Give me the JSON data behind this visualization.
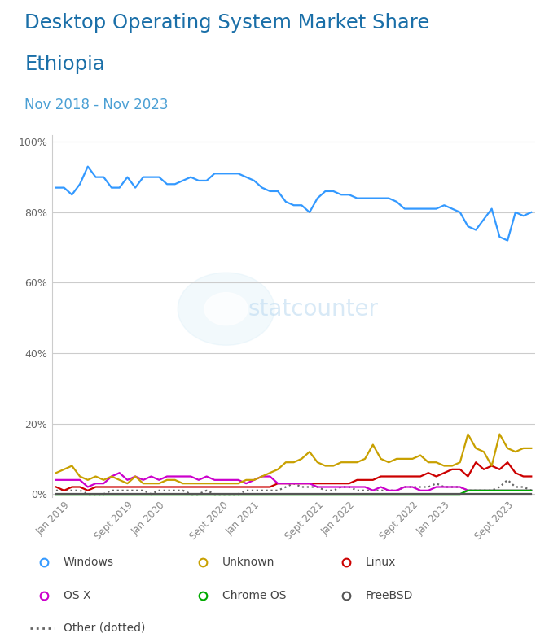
{
  "title_line1": "Desktop Operating System Market Share",
  "title_line2": "Ethiopia",
  "subtitle": "Nov 2018 - Nov 2023",
  "title_color": "#1a6fa8",
  "subtitle_color": "#4a9fd4",
  "background_color": "#ffffff",
  "plot_bg_color": "#ffffff",
  "grid_color": "#cccccc",
  "watermark_text": "statcounter",
  "series": {
    "Windows": {
      "color": "#3399ff",
      "zorder": 5,
      "values": [
        87,
        87,
        85,
        88,
        93,
        90,
        90,
        87,
        87,
        90,
        87,
        90,
        90,
        90,
        88,
        88,
        89,
        90,
        89,
        89,
        91,
        91,
        91,
        91,
        90,
        89,
        87,
        86,
        86,
        83,
        82,
        82,
        80,
        84,
        86,
        86,
        85,
        85,
        84,
        84,
        84,
        84,
        84,
        83,
        81,
        81,
        81,
        81,
        81,
        82,
        81,
        80,
        76,
        75,
        78,
        81,
        73,
        72,
        80,
        79,
        80
      ]
    },
    "Unknown": {
      "color": "#c8a000",
      "zorder": 4,
      "values": [
        6,
        7,
        8,
        5,
        4,
        5,
        4,
        5,
        4,
        3,
        5,
        3,
        3,
        3,
        4,
        4,
        3,
        3,
        3,
        3,
        3,
        3,
        3,
        3,
        4,
        4,
        5,
        6,
        7,
        9,
        9,
        10,
        12,
        9,
        8,
        8,
        9,
        9,
        9,
        10,
        14,
        10,
        9,
        10,
        10,
        10,
        11,
        9,
        9,
        8,
        8,
        9,
        17,
        13,
        12,
        8,
        17,
        13,
        12,
        13,
        13
      ]
    },
    "Linux": {
      "color": "#cc0000",
      "zorder": 3,
      "values": [
        2,
        1,
        2,
        2,
        1,
        2,
        2,
        2,
        2,
        2,
        2,
        2,
        2,
        2,
        2,
        2,
        2,
        2,
        2,
        2,
        2,
        2,
        2,
        2,
        2,
        2,
        2,
        2,
        3,
        3,
        3,
        3,
        3,
        3,
        3,
        3,
        3,
        3,
        4,
        4,
        4,
        5,
        5,
        5,
        5,
        5,
        5,
        6,
        5,
        6,
        7,
        7,
        5,
        9,
        7,
        8,
        7,
        9,
        6,
        5,
        5
      ]
    },
    "OS X": {
      "color": "#cc00cc",
      "zorder": 3,
      "values": [
        4,
        4,
        4,
        4,
        2,
        3,
        3,
        5,
        6,
        4,
        5,
        4,
        5,
        4,
        5,
        5,
        5,
        5,
        4,
        5,
        4,
        4,
        4,
        4,
        3,
        4,
        5,
        5,
        3,
        3,
        3,
        3,
        3,
        2,
        2,
        2,
        2,
        2,
        2,
        2,
        1,
        2,
        1,
        1,
        2,
        2,
        1,
        1,
        2,
        2,
        2,
        2,
        1,
        1,
        1,
        1,
        1,
        1,
        1,
        1,
        1
      ]
    },
    "Chrome OS": {
      "color": "#00aa00",
      "zorder": 3,
      "values": [
        0,
        0,
        0,
        0,
        0,
        0,
        0,
        0,
        0,
        0,
        0,
        0,
        0,
        0,
        0,
        0,
        0,
        0,
        0,
        0,
        0,
        0,
        0,
        0,
        0,
        0,
        0,
        0,
        0,
        0,
        0,
        0,
        0,
        0,
        0,
        0,
        0,
        0,
        0,
        0,
        0,
        0,
        0,
        0,
        0,
        0,
        0,
        0,
        0,
        0,
        0,
        0,
        1,
        1,
        1,
        1,
        1,
        1,
        1,
        1,
        1
      ]
    },
    "FreeBSD": {
      "color": "#555555",
      "zorder": 3,
      "values": [
        0,
        0,
        0,
        0,
        0,
        0,
        0,
        0,
        0,
        0,
        0,
        0,
        0,
        0,
        0,
        0,
        0,
        0,
        0,
        0,
        0,
        0,
        0,
        0,
        0,
        0,
        0,
        0,
        0,
        0,
        0,
        0,
        0,
        0,
        0,
        0,
        0,
        0,
        0,
        0,
        0,
        0,
        0,
        0,
        0,
        0,
        0,
        0,
        0,
        0,
        0,
        0,
        0,
        0,
        0,
        0,
        0,
        0,
        0,
        0,
        0
      ]
    },
    "Other": {
      "color": "#666666",
      "linestyle": "dotted",
      "zorder": 2,
      "values": [
        1,
        1,
        1,
        1,
        0,
        0,
        0,
        1,
        1,
        1,
        1,
        1,
        0,
        1,
        1,
        1,
        1,
        0,
        0,
        1,
        0,
        0,
        0,
        0,
        1,
        1,
        1,
        1,
        1,
        2,
        3,
        2,
        2,
        2,
        1,
        1,
        2,
        2,
        1,
        1,
        1,
        1,
        1,
        1,
        2,
        2,
        2,
        2,
        3,
        2,
        2,
        2,
        1,
        1,
        1,
        1,
        2,
        4,
        2,
        2,
        1
      ]
    }
  },
  "yticks": [
    0,
    20,
    40,
    60,
    80,
    100
  ],
  "ylim": [
    -1,
    102
  ],
  "xtick_labels": [
    "Jan 2019",
    "Sept 2019",
    "Jan 2020",
    "Sept 2020",
    "Jan 2021",
    "Sept 2021",
    "Jan 2022",
    "Sept 2022",
    "Jan 2023",
    "Sept 2023"
  ],
  "xtick_positions": [
    2,
    10,
    14,
    22,
    26,
    34,
    38,
    46,
    50,
    58
  ],
  "legend_items": [
    {
      "label": "Windows",
      "color": "#3399ff",
      "type": "marker"
    },
    {
      "label": "Unknown",
      "color": "#c8a000",
      "type": "marker"
    },
    {
      "label": "Linux",
      "color": "#cc0000",
      "type": "marker"
    },
    {
      "label": "OS X",
      "color": "#cc00cc",
      "type": "marker"
    },
    {
      "label": "Chrome OS",
      "color": "#00aa00",
      "type": "marker"
    },
    {
      "label": "FreeBSD",
      "color": "#555555",
      "type": "marker"
    },
    {
      "label": "Other (dotted)",
      "color": "#666666",
      "type": "line",
      "linestyle": "dotted"
    }
  ]
}
